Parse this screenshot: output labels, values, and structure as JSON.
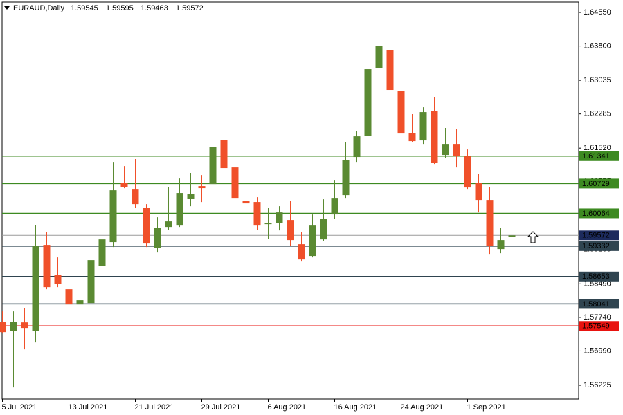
{
  "chart_data": {
    "type": "candlestick",
    "title": "EURAUD,Daily",
    "categories": [
      "5 Jul 2021",
      null,
      null,
      null,
      null,
      null,
      "13 Jul 2021",
      null,
      null,
      null,
      null,
      null,
      "21 Jul 2021",
      null,
      null,
      null,
      null,
      null,
      "29 Jul 2021",
      null,
      null,
      null,
      null,
      null,
      "6 Aug 2021",
      null,
      null,
      null,
      null,
      null,
      "16 Aug 2021",
      null,
      null,
      null,
      null,
      null,
      "24 Aug 2021",
      null,
      null,
      null,
      null,
      null,
      "1 Sep 2021",
      null,
      null,
      null,
      null
    ],
    "open": [
      1.57644,
      1.57443,
      1.57628,
      1.57443,
      1.59359,
      1.58694,
      1.5837,
      1.5803,
      1.58061,
      1.58895,
      1.59421,
      1.60749,
      1.6061,
      1.60193,
      1.59297,
      1.5976,
      1.59791,
      1.60394,
      1.60672,
      1.60718,
      1.61707,
      1.61089,
      1.60348,
      1.60317,
      1.59822,
      1.59853,
      1.59915,
      1.59374,
      1.59112,
      1.59482,
      1.60039,
      1.60471,
      1.61321,
      1.618,
      1.63314,
      1.63716,
      1.62804,
      1.61862,
      1.61692,
      1.62356,
      1.61367,
      1.61614,
      1.61336,
      1.60734,
      1.60363,
      1.59266,
      1.59545
    ],
    "high": [
      1.57876,
      1.57876,
      1.57953,
      1.59807,
      1.59652,
      1.59081,
      1.58833,
      1.58494,
      1.5922,
      1.59652,
      1.61213,
      1.6112,
      1.61275,
      1.6027,
      1.59977,
      1.60657,
      1.60842,
      1.60966,
      1.60919,
      1.61769,
      1.61831,
      1.61305,
      1.60533,
      1.60425,
      1.60193,
      1.60224,
      1.60348,
      1.59652,
      1.60039,
      1.60378,
      1.60811,
      1.61661,
      1.61893,
      1.63561,
      1.64365,
      1.63978,
      1.63005,
      1.62279,
      1.62433,
      1.62665,
      1.6197,
      1.61954,
      1.61491,
      1.60935,
      1.60657,
      1.59745,
      1.59595
    ],
    "low": [
      1.57381,
      1.56176,
      1.57026,
      1.5718,
      1.5837,
      1.58416,
      1.57953,
      1.57752,
      1.5803,
      1.5871,
      1.59312,
      1.60626,
      1.60193,
      1.59312,
      1.59189,
      1.59699,
      1.5976,
      1.60224,
      1.60317,
      1.60579,
      1.60996,
      1.60348,
      1.59652,
      1.59699,
      1.59498,
      1.59683,
      1.59343,
      1.58988,
      1.59081,
      1.59451,
      1.59946,
      1.60409,
      1.61213,
      1.61568,
      1.63221,
      1.62696,
      1.61769,
      1.61661,
      1.61614,
      1.61166,
      1.61305,
      1.61089,
      1.6061,
      1.60085,
      1.59158,
      1.59173,
      1.59463
    ],
    "close": [
      1.57412,
      1.57644,
      1.57505,
      1.59343,
      1.58416,
      1.58494,
      1.5803,
      1.58123,
      1.59019,
      1.59482,
      1.60579,
      1.60657,
      1.6027,
      1.5939,
      1.59745,
      1.59884,
      1.60518,
      1.60502,
      1.60626,
      1.61553,
      1.61074,
      1.60409,
      1.60286,
      1.59791,
      1.59853,
      1.60085,
      1.59467,
      1.59034,
      1.59791,
      1.59946,
      1.60409,
      1.61259,
      1.61784,
      1.63283,
      1.63808,
      1.6282,
      1.61846,
      1.61676,
      1.62325,
      1.61197,
      1.61614,
      1.61336,
      1.60641,
      1.60363,
      1.59343,
      1.59467,
      1.59572
    ],
    "up_color": "#5a8a32",
    "down_color": "#f0502a",
    "last_price_color": "#1c2a5c",
    "levels": [
      {
        "value": 1.61341,
        "color": "#3d8a21"
      },
      {
        "value": 1.60729,
        "color": "#3d8a21"
      },
      {
        "value": 1.60064,
        "color": "#3d8a21"
      },
      {
        "value": 1.59332,
        "color": "#2f4450"
      },
      {
        "value": 1.58653,
        "color": "#2f4450"
      },
      {
        "value": 1.58041,
        "color": "#2f4450"
      },
      {
        "value": 1.57549,
        "color": "#e8130f"
      }
    ],
    "ylim": [
      1.55916,
      1.64782
    ],
    "yticks": [
      {
        "value": 1.6455,
        "label": "1.64550"
      },
      {
        "value": 1.638,
        "label": "1.63800"
      },
      1.63035,
      1.62285,
      {
        "value": 1.6152,
        "label": "1.61520"
      },
      1.60775,
      {
        "value": 1.6001,
        "label": "1.60010"
      },
      1.59255,
      {
        "value": 1.5849,
        "label": "1.58490"
      },
      {
        "value": 1.5774,
        "label": "1.57740"
      },
      {
        "value": 1.5699,
        "label": "1.56990"
      },
      1.56225
    ]
  }
}
